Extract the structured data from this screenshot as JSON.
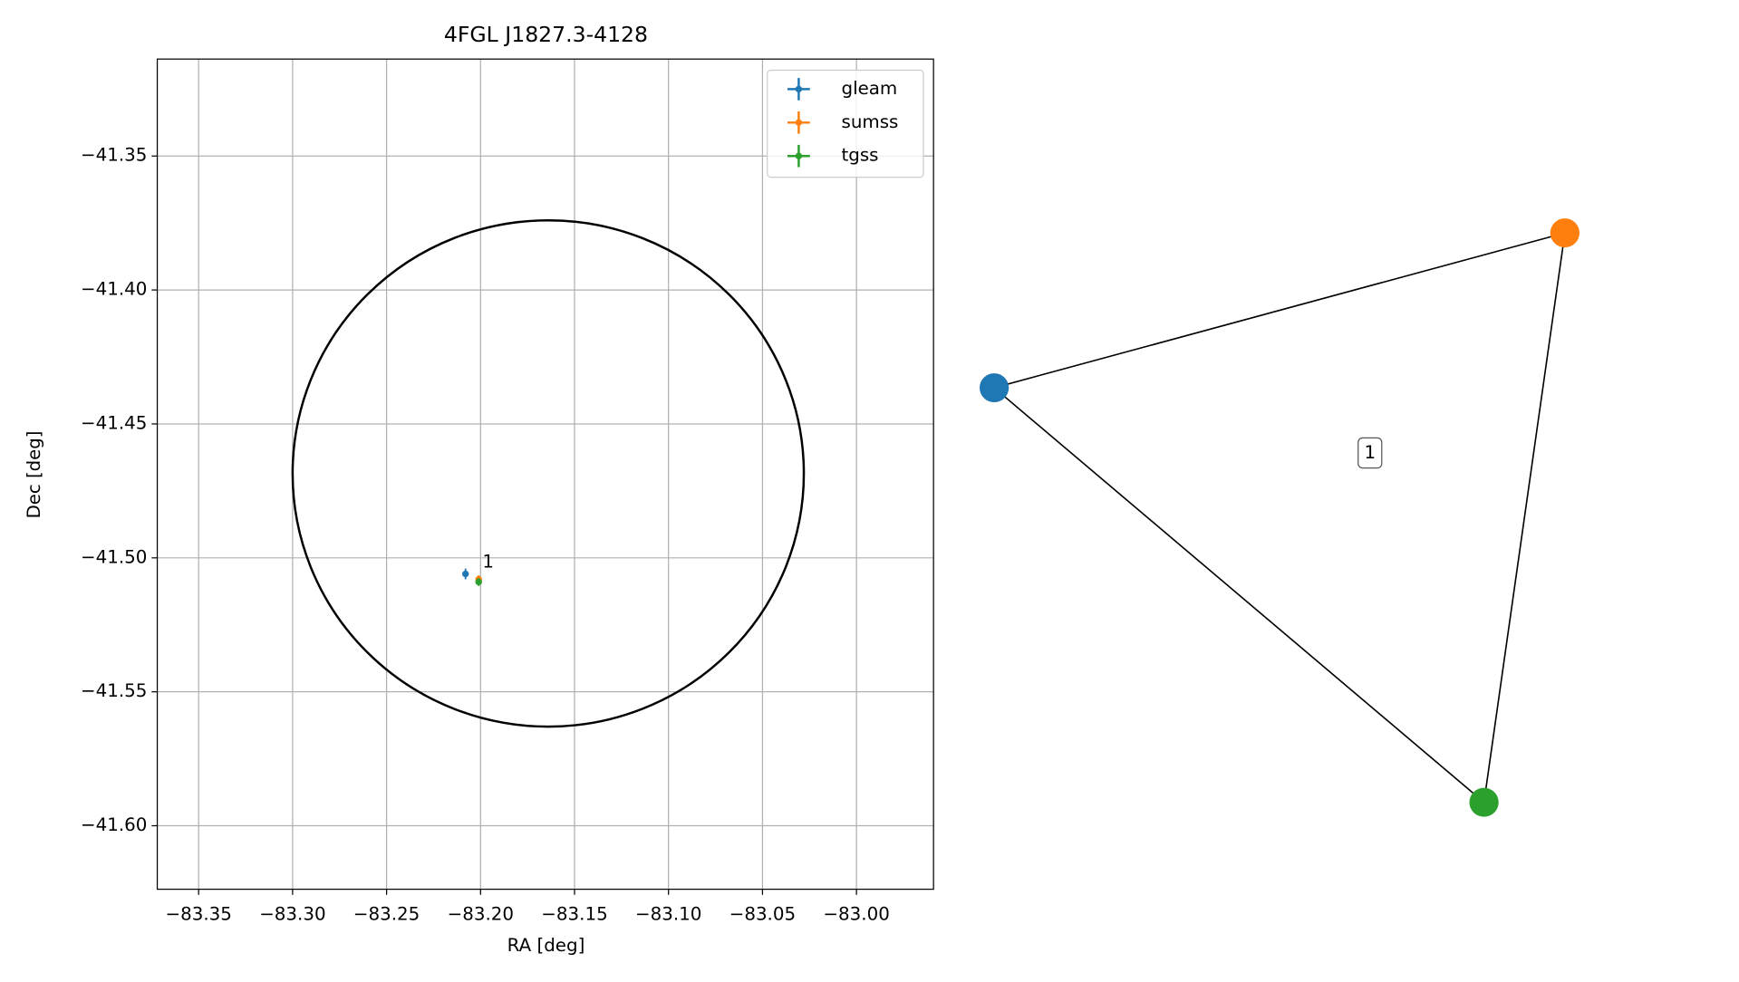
{
  "chart_data": [
    {
      "type": "scatter",
      "title": "4FGL J1827.3-4128",
      "x_label": "RA [deg]",
      "y_label": "Dec [deg]",
      "xlim": [
        -83.372,
        -82.959
      ],
      "ylim": [
        -41.6237,
        -41.3138
      ],
      "xticks": [
        {
          "value": -83.35,
          "label": "−83.35"
        },
        {
          "value": -83.3,
          "label": "−83.30"
        },
        {
          "value": -83.25,
          "label": "−83.25"
        },
        {
          "value": -83.2,
          "label": "−83.20"
        },
        {
          "value": -83.15,
          "label": "−83.15"
        },
        {
          "value": -83.1,
          "label": "−83.10"
        },
        {
          "value": -83.05,
          "label": "−83.05"
        },
        {
          "value": -83.0,
          "label": "−83.00"
        }
      ],
      "yticks": [
        {
          "value": -41.35,
          "label": "−41.35"
        },
        {
          "value": -41.4,
          "label": "−41.40"
        },
        {
          "value": -41.45,
          "label": "−41.45"
        },
        {
          "value": -41.5,
          "label": "−41.50"
        },
        {
          "value": -41.55,
          "label": "−41.55"
        },
        {
          "value": -41.6,
          "label": "−41.60"
        }
      ],
      "grid": true,
      "legend": "upper right",
      "series": [
        {
          "name": "gleam",
          "color": "#1f77b4",
          "x": [
            -83.208
          ],
          "values": [
            -41.506
          ],
          "xerr": [
            0.001
          ],
          "yerr": [
            0.002
          ]
        },
        {
          "name": "sumss",
          "color": "#ff7f0e",
          "x": [
            -83.201
          ],
          "values": [
            -41.508
          ],
          "xerr": [
            0.001
          ],
          "yerr": [
            0.0015
          ]
        },
        {
          "name": "tgss",
          "color": "#2ca02c",
          "x": [
            -83.201
          ],
          "values": [
            -41.509
          ],
          "xerr": [
            0.001
          ],
          "yerr": [
            0.0015
          ]
        }
      ],
      "ellipse": {
        "center": [
          -83.164,
          -41.4685
        ],
        "width": 0.272,
        "height": 0.189,
        "color": "#000000"
      },
      "annotations": [
        {
          "text": "1",
          "x": -83.199,
          "y": -41.501
        }
      ]
    },
    {
      "type": "graph",
      "nodes": [
        {
          "color": "#1f77b4"
        },
        {
          "color": "#ff7f0e"
        },
        {
          "color": "#2ca02c"
        }
      ],
      "edges": [
        [
          0,
          1
        ],
        [
          0,
          2
        ],
        [
          1,
          2
        ]
      ],
      "label": "1"
    }
  ]
}
